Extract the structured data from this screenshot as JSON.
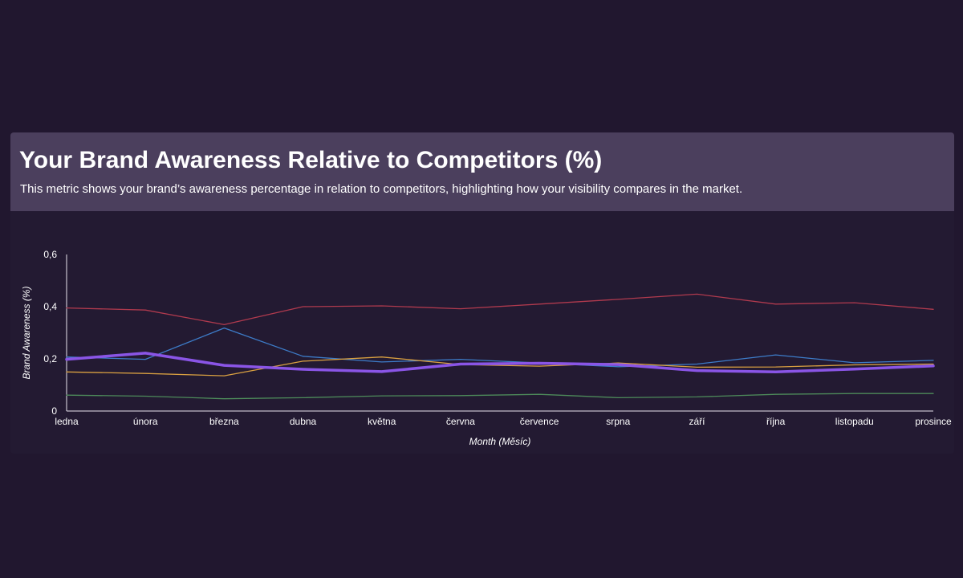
{
  "header": {
    "title": "Your Brand Awareness Relative to Competitors (%)",
    "subtitle": "This metric shows your brand’s awareness percentage in relation to competitors, highlighting how your visibility compares in the market."
  },
  "chart_data": {
    "type": "line",
    "xlabel": "Month (Měsíc)",
    "ylabel": "Brand Awareness (%)",
    "ylim": [
      0,
      0.6
    ],
    "yticks": [
      "0",
      "0,2",
      "0,4",
      "0,6"
    ],
    "legend": "none",
    "grid": false,
    "categories": [
      "ledna",
      "února",
      "března",
      "dubna",
      "května",
      "června",
      "července",
      "srpna",
      "září",
      "října",
      "listopadu",
      "prosince"
    ],
    "series": [
      {
        "color": "#b03a4e",
        "width": 1.3,
        "values": [
          0.395,
          0.387,
          0.331,
          0.4,
          0.403,
          0.392,
          0.41,
          0.428,
          0.448,
          0.41,
          0.415,
          0.39
        ]
      },
      {
        "color": "#3d7cc9",
        "width": 1.3,
        "values": [
          0.207,
          0.198,
          0.318,
          0.21,
          0.188,
          0.198,
          0.184,
          0.17,
          0.18,
          0.215,
          0.185,
          0.194
        ]
      },
      {
        "color": "#d9a041",
        "width": 1.3,
        "values": [
          0.15,
          0.144,
          0.135,
          0.191,
          0.207,
          0.178,
          0.172,
          0.184,
          0.168,
          0.169,
          0.177,
          0.18
        ]
      },
      {
        "color": "#4d8a5a",
        "width": 1.3,
        "values": [
          0.061,
          0.057,
          0.047,
          0.051,
          0.058,
          0.059,
          0.064,
          0.051,
          0.054,
          0.064,
          0.067,
          0.067
        ]
      },
      {
        "color": "#8a55e6",
        "width": 3.5,
        "values": [
          0.198,
          0.222,
          0.175,
          0.16,
          0.151,
          0.18,
          0.183,
          0.178,
          0.155,
          0.15,
          0.161,
          0.173
        ]
      }
    ]
  }
}
